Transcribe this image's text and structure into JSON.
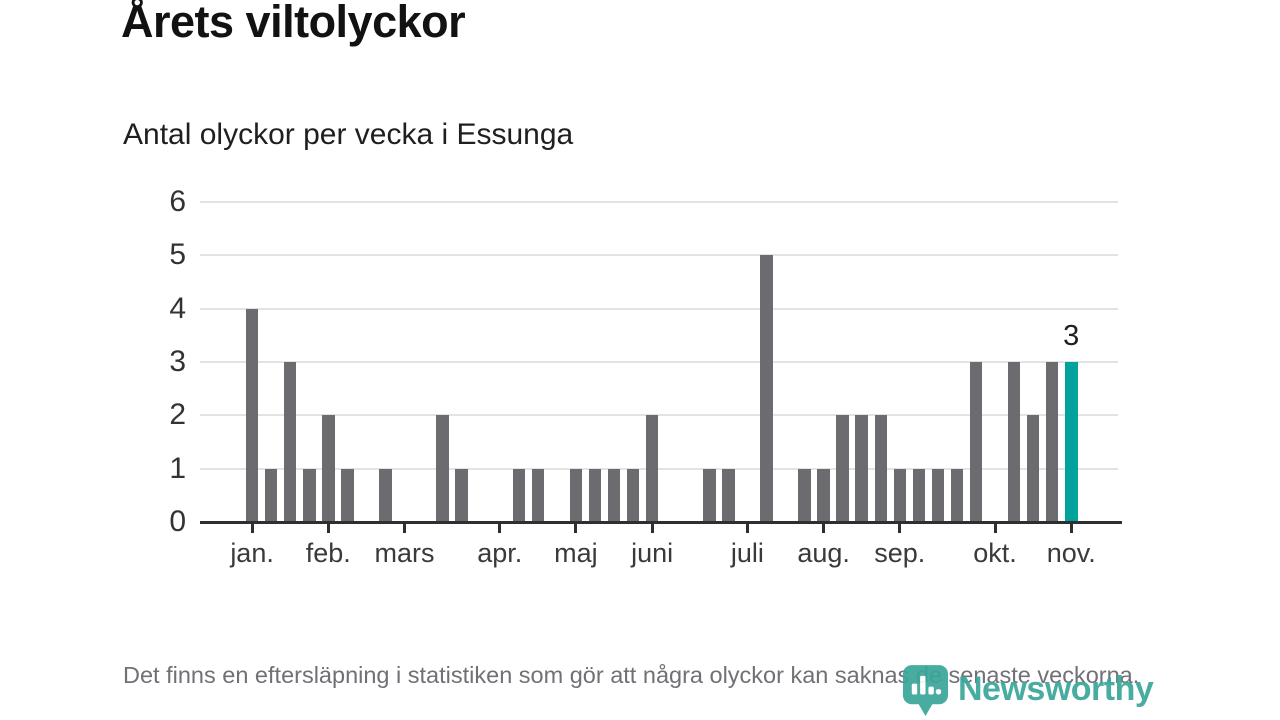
{
  "header": {
    "title": "Årets viltolyckor",
    "subtitle": "Antal olyckor per vecka i Essunga"
  },
  "chart_data": {
    "type": "bar",
    "title": "Årets viltolyckor",
    "subtitle": "Antal olyckor per vecka i Essunga",
    "unit": "olyckor per vecka",
    "values": [
      0,
      0,
      4,
      1,
      3,
      1,
      2,
      1,
      0,
      1,
      0,
      0,
      2,
      1,
      0,
      0,
      1,
      1,
      0,
      1,
      1,
      1,
      1,
      2,
      0,
      0,
      1,
      1,
      0,
      5,
      0,
      1,
      1,
      2,
      2,
      2,
      1,
      1,
      1,
      1,
      3,
      0,
      3,
      2,
      3,
      3
    ],
    "month_ticks": [
      {
        "label": "jan.",
        "slot": 3
      },
      {
        "label": "feb.",
        "slot": 7
      },
      {
        "label": "mars",
        "slot": 11
      },
      {
        "label": "apr.",
        "slot": 16
      },
      {
        "label": "maj",
        "slot": 20
      },
      {
        "label": "juni",
        "slot": 24
      },
      {
        "label": "juli",
        "slot": 29
      },
      {
        "label": "aug.",
        "slot": 33
      },
      {
        "label": "sep.",
        "slot": 37
      },
      {
        "label": "okt.",
        "slot": 42
      },
      {
        "label": "nov.",
        "slot": 46
      }
    ],
    "yticks": [
      0,
      1,
      2,
      3,
      4,
      5,
      6
    ],
    "ylim": [
      0,
      6
    ],
    "grid": true,
    "bar_color": "#6b6b70",
    "highlight_color": "#00a29b",
    "highlight_index": 45,
    "highlight_label": "3"
  },
  "footer": {
    "note": "Det finns en eftersläpning i statistiken som gör att några olyckor kan saknas de senaste veckorna."
  },
  "branding": {
    "name": "Newsworthy",
    "color": "#3ba69a",
    "icon": "newsworthy-bubble-chart-icon"
  }
}
